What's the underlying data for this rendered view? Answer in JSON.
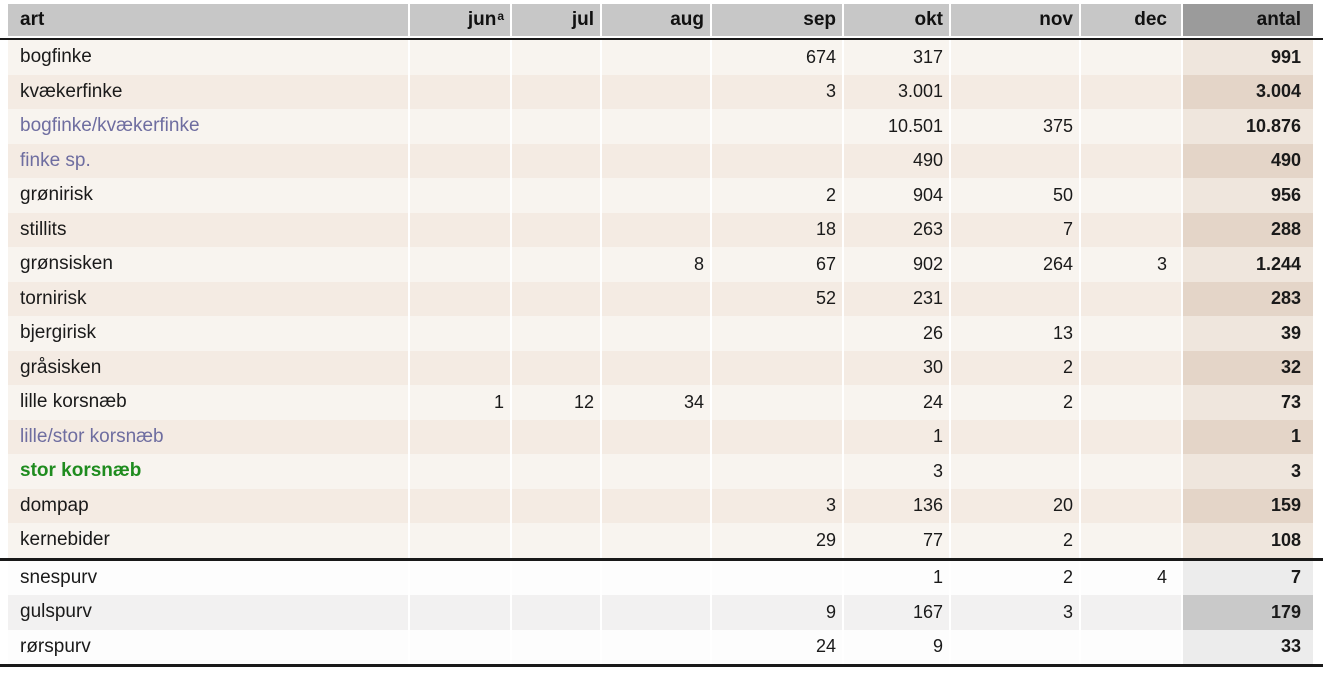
{
  "table": {
    "columns": [
      {
        "key": "art",
        "label": "art"
      },
      {
        "key": "jun",
        "label": "jun",
        "superscript": "a"
      },
      {
        "key": "jul",
        "label": "jul"
      },
      {
        "key": "aug",
        "label": "aug"
      },
      {
        "key": "sep",
        "label": "sep"
      },
      {
        "key": "okt",
        "label": "okt"
      },
      {
        "key": "nov",
        "label": "nov"
      },
      {
        "key": "dec",
        "label": "dec"
      },
      {
        "key": "antal",
        "label": "antal"
      }
    ],
    "rows": [
      {
        "art": "bogfinke",
        "name_style": "normal",
        "band": "cream",
        "jun": "",
        "jul": "",
        "aug": "",
        "sep": "674",
        "okt": "317",
        "nov": "",
        "dec": "",
        "antal": "991"
      },
      {
        "art": "kvækerfinke",
        "name_style": "normal",
        "band": "pink",
        "jun": "",
        "jul": "",
        "aug": "",
        "sep": "3",
        "okt": "3.001",
        "nov": "",
        "dec": "",
        "antal": "3.004"
      },
      {
        "art": "bogfinke/kvækerfinke",
        "name_style": "purple",
        "band": "cream",
        "jun": "",
        "jul": "",
        "aug": "",
        "sep": "",
        "okt": "10.501",
        "nov": "375",
        "dec": "",
        "antal": "10.876"
      },
      {
        "art": "finke sp.",
        "name_style": "purple",
        "band": "pink",
        "jun": "",
        "jul": "",
        "aug": "",
        "sep": "",
        "okt": "490",
        "nov": "",
        "dec": "",
        "antal": "490"
      },
      {
        "art": "grønirisk",
        "name_style": "normal",
        "band": "cream",
        "jun": "",
        "jul": "",
        "aug": "",
        "sep": "2",
        "okt": "904",
        "nov": "50",
        "dec": "",
        "antal": "956"
      },
      {
        "art": "stillits",
        "name_style": "normal",
        "band": "pink",
        "jun": "",
        "jul": "",
        "aug": "",
        "sep": "18",
        "okt": "263",
        "nov": "7",
        "dec": "",
        "antal": "288"
      },
      {
        "art": "grønsisken",
        "name_style": "normal",
        "band": "cream",
        "jun": "",
        "jul": "",
        "aug": "8",
        "sep": "67",
        "okt": "902",
        "nov": "264",
        "dec": "3",
        "antal": "1.244"
      },
      {
        "art": "tornirisk",
        "name_style": "normal",
        "band": "pink",
        "jun": "",
        "jul": "",
        "aug": "",
        "sep": "52",
        "okt": "231",
        "nov": "",
        "dec": "",
        "antal": "283"
      },
      {
        "art": "bjergirisk",
        "name_style": "normal",
        "band": "cream",
        "jun": "",
        "jul": "",
        "aug": "",
        "sep": "",
        "okt": "26",
        "nov": "13",
        "dec": "",
        "antal": "39"
      },
      {
        "art": "gråsisken",
        "name_style": "normal",
        "band": "pink",
        "jun": "",
        "jul": "",
        "aug": "",
        "sep": "",
        "okt": "30",
        "nov": "2",
        "dec": "",
        "antal": "32"
      },
      {
        "art": "lille korsnæb",
        "name_style": "normal",
        "band": "cream",
        "jun": "1",
        "jul": "12",
        "aug": "34",
        "sep": "",
        "okt": "24",
        "nov": "2",
        "dec": "",
        "antal": "73"
      },
      {
        "art": "lille/stor korsnæb",
        "name_style": "purple",
        "band": "pink",
        "jun": "",
        "jul": "",
        "aug": "",
        "sep": "",
        "okt": "1",
        "nov": "",
        "dec": "",
        "antal": "1"
      },
      {
        "art": "stor korsnæb",
        "name_style": "green",
        "band": "cream",
        "jun": "",
        "jul": "",
        "aug": "",
        "sep": "",
        "okt": "3",
        "nov": "",
        "dec": "",
        "antal": "3"
      },
      {
        "art": "dompap",
        "name_style": "normal",
        "band": "pink",
        "jun": "",
        "jul": "",
        "aug": "",
        "sep": "3",
        "okt": "136",
        "nov": "20",
        "dec": "",
        "antal": "159"
      },
      {
        "art": "kernebider",
        "name_style": "normal",
        "band": "cream",
        "jun": "",
        "jul": "",
        "aug": "",
        "sep": "29",
        "okt": "77",
        "nov": "2",
        "dec": "",
        "antal": "108"
      },
      {
        "art": "snespurv",
        "name_style": "normal",
        "band": "white",
        "separator_before": true,
        "jun": "",
        "jul": "",
        "aug": "",
        "sep": "",
        "okt": "1",
        "nov": "2",
        "dec": "4",
        "antal": "7"
      },
      {
        "art": "gulspurv",
        "name_style": "normal",
        "band": "gray",
        "jun": "",
        "jul": "",
        "aug": "",
        "sep": "9",
        "okt": "167",
        "nov": "3",
        "dec": "",
        "antal": "179"
      },
      {
        "art": "rørspurv",
        "name_style": "normal",
        "band": "white",
        "jun": "",
        "jul": "",
        "aug": "",
        "sep": "24",
        "okt": "9",
        "nov": "",
        "dec": "",
        "antal": "33"
      }
    ]
  },
  "colors": {
    "header_bg": "#c7c7c7",
    "antal_header_bg": "#9b9b9b",
    "row_cream": "#f8f4ef",
    "row_pink": "#f4ebe3",
    "antal_cream": "#efe6dd",
    "antal_pink": "#e4d5c8",
    "row_white": "#fdfdfd",
    "row_gray": "#f2f1f1",
    "antal_white": "#ececec",
    "antal_gray": "#c9c9c9",
    "species_purple": "#6e6da0",
    "species_green": "#1f8c1f",
    "rule_black": "#191919"
  }
}
